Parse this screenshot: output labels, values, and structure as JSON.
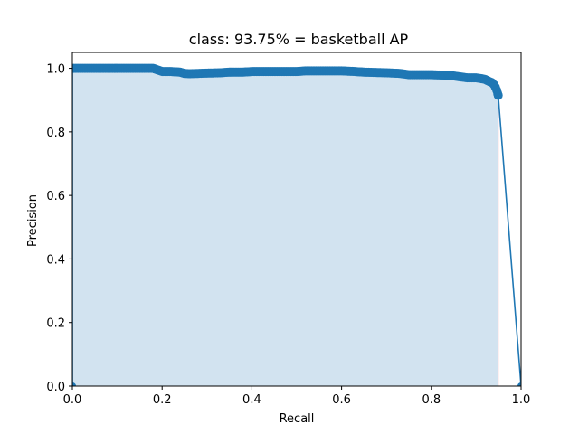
{
  "chart_data": {
    "type": "line",
    "title": "class: 93.75% = basketball AP",
    "xlabel": "Recall",
    "ylabel": "Precision",
    "xlim": [
      0,
      1
    ],
    "ylim": [
      0,
      1.05
    ],
    "xticks": [
      "0.0",
      "0.2",
      "0.4",
      "0.6",
      "0.8",
      "1.0"
    ],
    "yticks": [
      "0.0",
      "0.2",
      "0.4",
      "0.6",
      "0.8",
      "1.0"
    ],
    "grid": false,
    "series": [
      {
        "color": "#1f77b4",
        "fill_color": "#d2e3f0",
        "x": [
          0.0,
          0.0,
          0.02,
          0.05,
          0.1,
          0.15,
          0.18,
          0.19,
          0.2,
          0.22,
          0.24,
          0.25,
          0.26,
          0.3,
          0.33,
          0.35,
          0.38,
          0.4,
          0.45,
          0.5,
          0.52,
          0.55,
          0.6,
          0.63,
          0.65,
          0.7,
          0.73,
          0.74,
          0.75,
          0.8,
          0.84,
          0.86,
          0.88,
          0.9,
          0.91,
          0.92,
          0.93,
          0.935,
          0.94,
          0.943,
          0.946,
          0.948,
          0.949,
          1.0
        ],
        "y": [
          0.0,
          1.0,
          1.0,
          1.0,
          1.0,
          1.0,
          1.0,
          0.995,
          0.99,
          0.99,
          0.988,
          0.984,
          0.983,
          0.985,
          0.986,
          0.988,
          0.988,
          0.99,
          0.99,
          0.99,
          0.992,
          0.992,
          0.992,
          0.99,
          0.988,
          0.986,
          0.984,
          0.982,
          0.98,
          0.98,
          0.978,
          0.974,
          0.97,
          0.97,
          0.968,
          0.965,
          0.958,
          0.955,
          0.948,
          0.94,
          0.93,
          0.92,
          0.915,
          0.0
        ]
      }
    ],
    "fill_edge_color": "#f4b6c2"
  }
}
